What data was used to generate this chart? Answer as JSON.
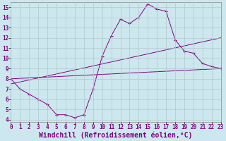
{
  "xlabel": "Windchill (Refroidissement éolien,°C)",
  "background_color": "#cce8ee",
  "line_color": "#800080",
  "xlim": [
    0,
    23
  ],
  "ylim": [
    3.8,
    15.5
  ],
  "xticks": [
    0,
    1,
    2,
    3,
    4,
    5,
    6,
    7,
    8,
    9,
    10,
    11,
    12,
    13,
    14,
    15,
    16,
    17,
    18,
    19,
    20,
    21,
    22,
    23
  ],
  "yticks": [
    4,
    5,
    6,
    7,
    8,
    9,
    10,
    11,
    12,
    13,
    14,
    15
  ],
  "line1_x": [
    0,
    1,
    2,
    3,
    4,
    5,
    6,
    7,
    8,
    9,
    10,
    11,
    12,
    13,
    14,
    15,
    16,
    17,
    18,
    19,
    20,
    21,
    22,
    23
  ],
  "line1_y": [
    8.0,
    7.0,
    6.5,
    6.0,
    5.5,
    4.5,
    4.5,
    4.2,
    4.5,
    7.0,
    10.2,
    12.2,
    13.8,
    13.4,
    14.0,
    15.3,
    14.8,
    14.6,
    11.8,
    10.7,
    10.5,
    9.5,
    9.2,
    9.0
  ],
  "line2_x": [
    0,
    23
  ],
  "line2_y": [
    8.0,
    9.0
  ],
  "line3_x": [
    0,
    23
  ],
  "line3_y": [
    7.5,
    12.0
  ],
  "grid_color": "#b0c8cc",
  "tick_fontsize": 5.5,
  "xlabel_fontsize": 7.0
}
